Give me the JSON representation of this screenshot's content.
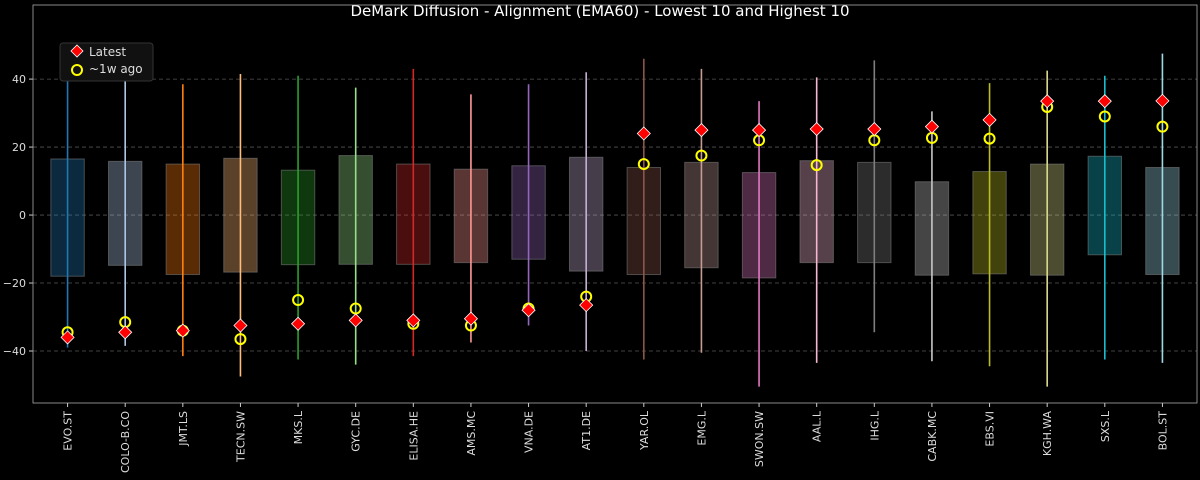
{
  "chart_data": {
    "type": "range-box",
    "title": "DeMark Diffusion - Alignment (EMA60) - Lowest 10 and Highest 10",
    "xlabel": "",
    "ylabel": "",
    "ylim": [
      -55.3,
      61.8
    ],
    "yticks": [
      -40,
      -20,
      0,
      20,
      40
    ],
    "grid": "horizontal dashed",
    "legend": {
      "placement": "top-left",
      "entries": [
        {
          "label": "Latest",
          "marker": "red diamond",
          "color": "#ff0000"
        },
        {
          "label": "~1w ago",
          "marker": "yellow hollow circle",
          "color": "#ffff00"
        }
      ]
    },
    "categories": [
      "EVO.ST",
      "COLO-B.CO",
      "JMT.LS",
      "TECN.SW",
      "MKS.L",
      "GYC.DE",
      "ELISA.HE",
      "AMS.MC",
      "VNA.DE",
      "AT1.DE",
      "YAR.OL",
      "EMG.L",
      "SWON.SW",
      "AAL.L",
      "IHG.L",
      "CABK.MC",
      "EBS.VI",
      "KGH.WA",
      "SXS.L",
      "BOL.ST"
    ],
    "colors": [
      "#1f77b4",
      "#aec7e8",
      "#ff7f0e",
      "#ffbb78",
      "#2ca02c",
      "#98df8a",
      "#d62728",
      "#ff9896",
      "#9467bd",
      "#c5b0d5",
      "#8c564b",
      "#c49c94",
      "#e377c2",
      "#f7b6d2",
      "#7f7f7f",
      "#c7c7c7",
      "#bcbd22",
      "#dbdb8d",
      "#17becf",
      "#9edae5"
    ],
    "range_max": [
      49,
      42,
      38.5,
      41.5,
      41,
      37.5,
      43,
      35.5,
      38.5,
      42,
      46,
      43,
      33.5,
      40.5,
      45.5,
      30.5,
      38.8,
      42.5,
      41,
      47.5
    ],
    "range_min": [
      -39,
      -38.5,
      -41.5,
      -47.5,
      -42.5,
      -44,
      -41.5,
      -37.5,
      -32.5,
      -40,
      -42.5,
      -40.5,
      -50.5,
      -43.5,
      -34.5,
      -43,
      -44.5,
      -50.5,
      -42.5,
      -43.5
    ],
    "box_top": [
      16.5,
      15.8,
      15,
      16.7,
      13.2,
      17.5,
      15,
      13.5,
      14.5,
      17,
      14,
      15.5,
      12.5,
      16,
      15.5,
      9.8,
      12.8,
      15,
      17.3,
      14
    ],
    "box_bottom": [
      -18,
      -14.8,
      -17.5,
      -16.8,
      -14.6,
      -14.5,
      -14.5,
      -14,
      -13,
      -16.5,
      -17.5,
      -15.5,
      -18.5,
      -14,
      -14,
      -17.7,
      -17.3,
      -17.7,
      -11.7,
      -17.5
    ],
    "series": [
      {
        "name": "Latest",
        "values": [
          -36,
          -34.5,
          -34,
          -32.5,
          -32,
          -31,
          -31,
          -30.5,
          -28,
          -26.5,
          24,
          25,
          25,
          25.3,
          25.3,
          26,
          28,
          33.5,
          33.5,
          33.6
        ]
      },
      {
        "name": "~1w ago",
        "values": [
          -34.5,
          -31.5,
          -34,
          -36.5,
          -25,
          -27.5,
          -32,
          -32.5,
          -27.5,
          -24,
          15,
          17.5,
          22,
          14.7,
          22,
          22.7,
          22.5,
          31.8,
          29,
          26
        ]
      }
    ]
  }
}
